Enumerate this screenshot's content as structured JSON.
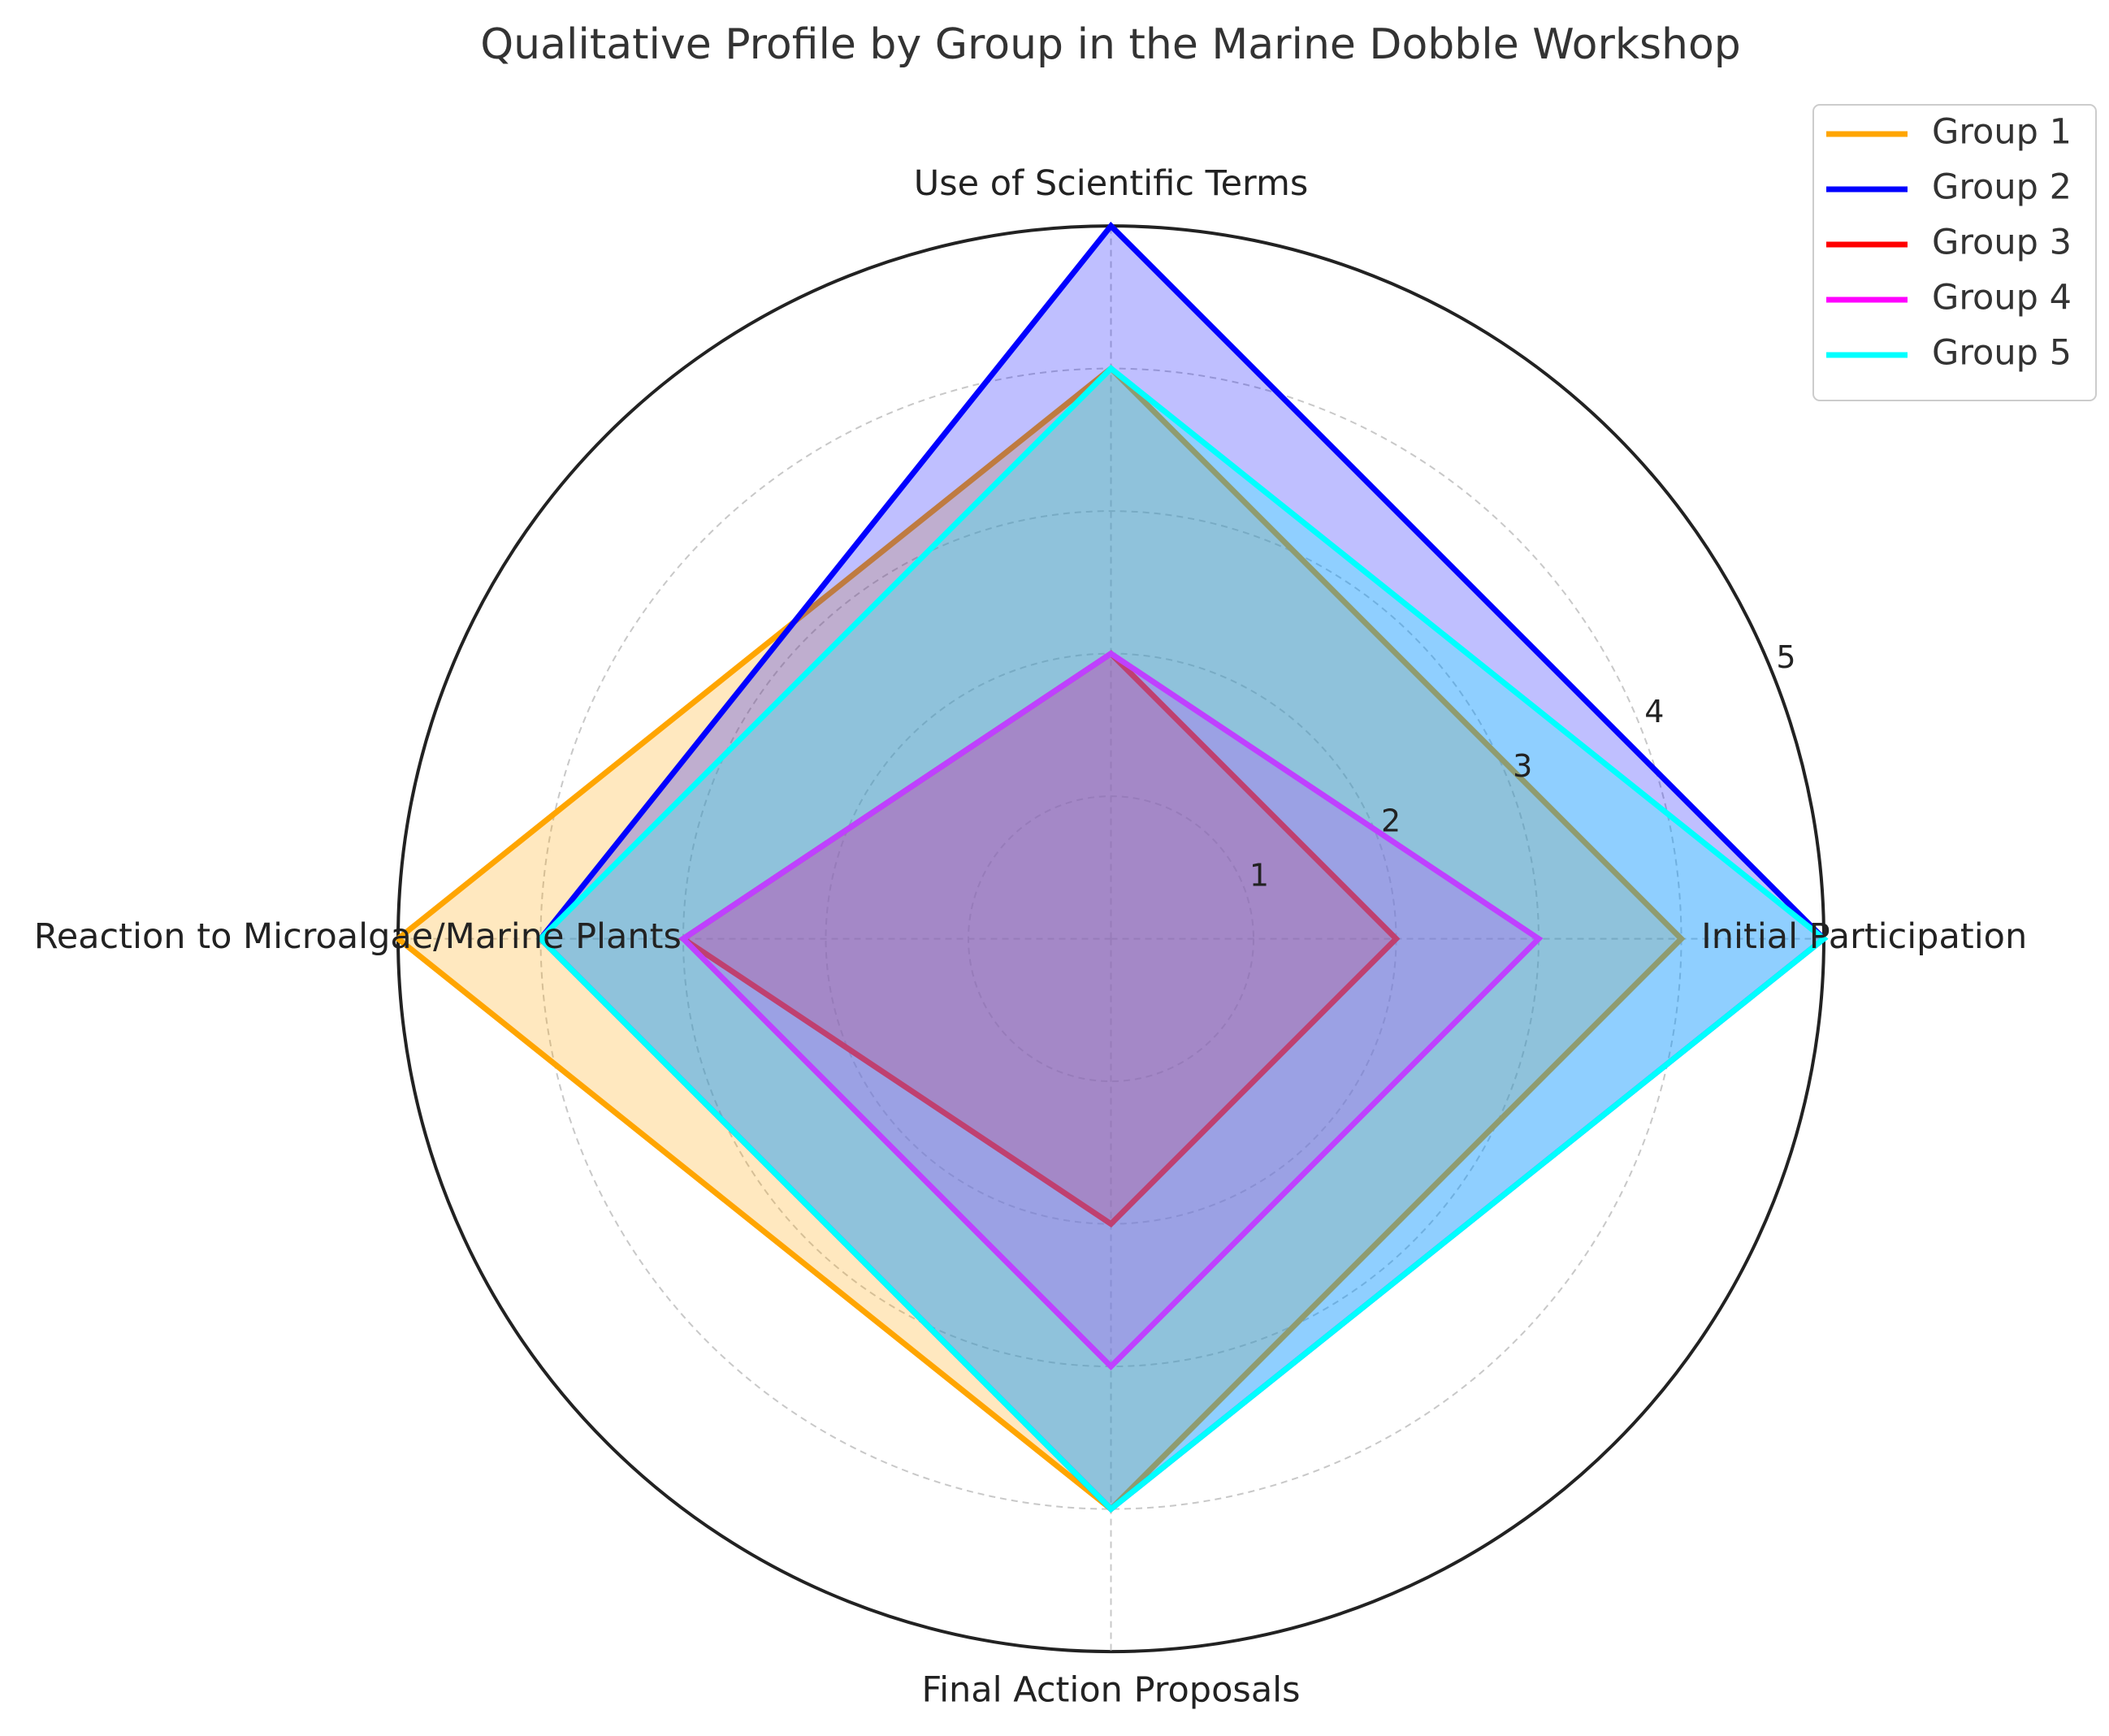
{
  "chart_data": {
    "type": "radar",
    "title": "Qualitative Profile by Group in the Marine Dobble Workshop",
    "categories": [
      "Initial Participation",
      "Use of Scientific Terms",
      "Reaction to Microalgae/Marine Plants",
      "Final Action Proposals"
    ],
    "series": [
      {
        "name": "Group 1",
        "color": "#FFA500",
        "values": [
          4,
          4,
          5,
          4
        ]
      },
      {
        "name": "Group 2",
        "color": "#0000FF",
        "values": [
          5,
          5,
          4,
          4
        ]
      },
      {
        "name": "Group 3",
        "color": "#FF0000",
        "values": [
          2,
          2,
          3,
          2
        ]
      },
      {
        "name": "Group 4",
        "color": "#FF00FF",
        "values": [
          3,
          2,
          3,
          3
        ]
      },
      {
        "name": "Group 5",
        "color": "#00FFFF",
        "values": [
          5,
          4,
          4,
          4
        ]
      }
    ],
    "ylim": [
      0,
      5
    ],
    "yticks": [
      1,
      2,
      3,
      4,
      5
    ],
    "grid": true,
    "legend": "upper right"
  }
}
